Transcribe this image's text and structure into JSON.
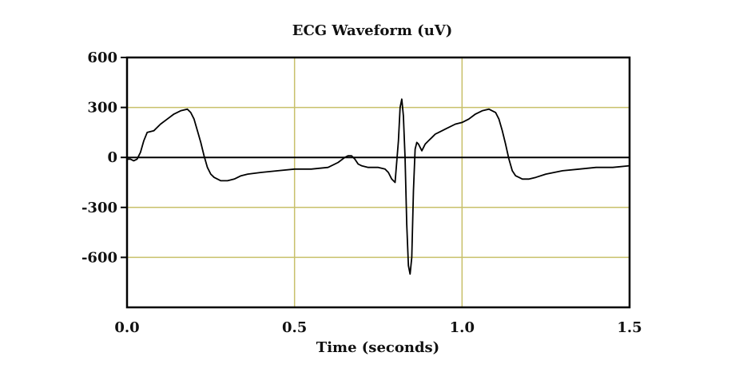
{
  "chart_data": {
    "type": "line",
    "title": "ECG Waveform (uV)",
    "xlabel": "Time (seconds)",
    "ylabel": "",
    "xlim": [
      0,
      1.5
    ],
    "ylim": [
      -900,
      600
    ],
    "x_ticks": [
      0.0,
      0.5,
      1.0,
      1.5
    ],
    "x_tick_labels": [
      "0.0",
      "0.5",
      "1.0",
      "1.5"
    ],
    "y_ticks": [
      600,
      300,
      0,
      -300,
      -600
    ],
    "y_tick_labels": [
      "600",
      "300",
      "0",
      "-300",
      "-600"
    ],
    "grid": true,
    "grid_color": "#c8c06a",
    "zero_line_color": "#000000",
    "line_color": "#000000",
    "legend": "none",
    "series": [
      {
        "x": [
          0.0,
          0.01,
          0.02,
          0.03,
          0.04,
          0.05,
          0.06,
          0.08,
          0.1,
          0.12,
          0.14,
          0.16,
          0.18,
          0.19,
          0.2,
          0.21,
          0.22,
          0.23,
          0.24,
          0.25,
          0.26,
          0.28,
          0.3,
          0.32,
          0.34,
          0.36,
          0.4,
          0.45,
          0.5,
          0.55,
          0.6,
          0.63,
          0.65,
          0.66,
          0.67,
          0.68,
          0.69,
          0.7,
          0.72,
          0.75,
          0.77,
          0.78,
          0.79,
          0.8,
          0.81,
          0.815,
          0.82,
          0.825,
          0.83,
          0.835,
          0.84,
          0.845,
          0.85,
          0.855,
          0.86,
          0.865,
          0.87,
          0.875,
          0.88,
          0.885,
          0.89,
          0.9,
          0.91,
          0.92,
          0.93,
          0.95,
          0.98,
          1.0,
          1.02,
          1.04,
          1.06,
          1.08,
          1.1,
          1.11,
          1.12,
          1.13,
          1.14,
          1.15,
          1.16,
          1.17,
          1.18,
          1.2,
          1.22,
          1.25,
          1.3,
          1.35,
          1.4,
          1.45,
          1.5
        ],
        "values": [
          -10,
          -10,
          -20,
          -10,
          30,
          100,
          150,
          160,
          200,
          230,
          260,
          280,
          290,
          270,
          230,
          160,
          90,
          10,
          -60,
          -100,
          -120,
          -140,
          -140,
          -130,
          -110,
          -100,
          -90,
          -80,
          -70,
          -70,
          -60,
          -30,
          0,
          10,
          10,
          -10,
          -40,
          -50,
          -60,
          -60,
          -70,
          -90,
          -130,
          -150,
          100,
          300,
          350,
          250,
          0,
          -400,
          -650,
          -700,
          -600,
          -200,
          50,
          90,
          80,
          60,
          40,
          60,
          80,
          100,
          120,
          140,
          150,
          170,
          200,
          210,
          230,
          260,
          280,
          290,
          270,
          230,
          160,
          80,
          -10,
          -80,
          -110,
          -120,
          -130,
          -130,
          -120,
          -100,
          -80,
          -70,
          -60,
          -60,
          -50
        ]
      }
    ]
  }
}
